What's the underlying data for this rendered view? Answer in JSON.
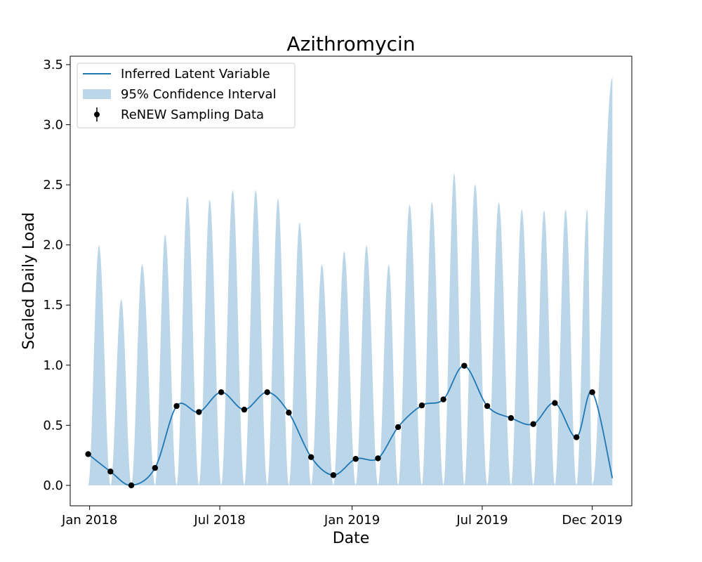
{
  "chart_data": {
    "type": "line",
    "title": "Azithromycin",
    "xlabel": "Date",
    "ylabel": "Scaled Daily Load",
    "xlim": [
      "2017-12-05",
      "2020-01-25"
    ],
    "ylim": [
      -0.17,
      3.57
    ],
    "x_ticks": [
      "2018-01-01",
      "2018-07-01",
      "2019-01-01",
      "2019-07-01",
      "2019-12-01"
    ],
    "x_tick_labels": [
      "Jan 2018",
      "Jul 2018",
      "Jan 2019",
      "Jul 2019",
      "Dec 2019"
    ],
    "y_ticks": [
      0.0,
      0.5,
      1.0,
      1.5,
      2.0,
      2.5,
      3.0,
      3.5
    ],
    "y_tick_labels": [
      "0.0",
      "0.5",
      "1.0",
      "1.5",
      "2.0",
      "2.5",
      "3.0",
      "3.5"
    ],
    "legend": {
      "position": "upper-left",
      "entries": [
        "Inferred Latent Variable",
        "95% Confidence Interval",
        "ReNEW Sampling Data"
      ]
    },
    "colors": {
      "line": "#1f77b4",
      "band": "#1f77b4",
      "band_opacity": 0.3,
      "points": "#000000"
    },
    "grid": false,
    "series": [
      {
        "name": "ReNEW Sampling Data",
        "type": "scatter",
        "x": [
          "2017-12-30",
          "2018-01-30",
          "2018-02-28",
          "2018-04-02",
          "2018-05-02",
          "2018-06-02",
          "2018-07-03",
          "2018-08-04",
          "2018-09-05",
          "2018-10-05",
          "2018-11-05",
          "2018-12-06",
          "2019-01-06",
          "2019-02-06",
          "2019-03-06",
          "2019-04-08",
          "2019-05-08",
          "2019-06-06",
          "2019-07-08",
          "2019-08-10",
          "2019-09-10",
          "2019-10-10",
          "2019-11-09",
          "2019-12-01"
        ],
        "y": [
          0.26,
          0.115,
          0.0,
          0.145,
          0.66,
          0.61,
          0.775,
          0.63,
          0.775,
          0.605,
          0.235,
          0.085,
          0.22,
          0.225,
          0.485,
          0.665,
          0.715,
          0.995,
          0.66,
          0.56,
          0.51,
          0.685,
          0.4,
          0.775
        ]
      },
      {
        "name": "95% Confidence Interval",
        "type": "area",
        "lower": 0.0,
        "peaks_x": [
          "2018-01-14",
          "2018-02-14",
          "2018-03-15",
          "2018-04-16",
          "2018-05-17",
          "2018-06-17",
          "2018-07-19",
          "2018-08-20",
          "2018-09-20",
          "2018-10-20",
          "2018-11-20",
          "2018-12-21",
          "2019-01-21",
          "2019-02-21",
          "2019-03-22",
          "2019-04-22",
          "2019-05-23",
          "2019-06-21",
          "2019-07-24",
          "2019-08-25",
          "2019-09-25",
          "2019-10-25",
          "2019-11-24",
          "2019-12-29"
        ],
        "peaks_y": [
          2.0,
          1.55,
          1.84,
          2.09,
          2.41,
          2.38,
          2.46,
          2.46,
          2.39,
          2.19,
          1.84,
          1.95,
          2.0,
          1.84,
          2.34,
          2.36,
          2.6,
          2.51,
          2.36,
          2.3,
          2.29,
          2.3,
          2.3,
          3.4
        ],
        "end_x": "2019-12-29"
      },
      {
        "name": "Inferred Latent Variable",
        "type": "line",
        "end_x": "2019-12-29",
        "end_y": 0.06
      }
    ]
  }
}
